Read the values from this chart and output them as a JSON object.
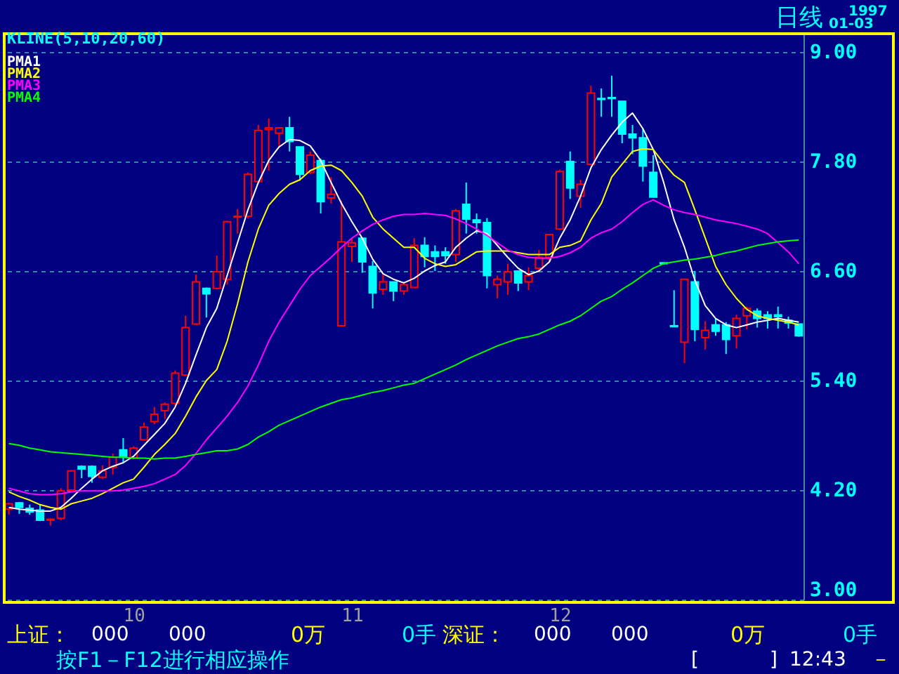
{
  "chart_data": {
    "type": "candlestick",
    "title": "日线",
    "subtitle": "KLINE(5,10,20,60)",
    "categories": [
      null,
      null,
      null,
      null,
      null,
      null,
      null,
      null,
      null,
      null,
      null,
      null,
      "10",
      null,
      null,
      null,
      null,
      null,
      null,
      null,
      null,
      null,
      null,
      null,
      null,
      null,
      null,
      null,
      null,
      null,
      null,
      null,
      null,
      "11",
      null,
      null,
      null,
      null,
      null,
      null,
      null,
      null,
      null,
      null,
      null,
      null,
      null,
      null,
      null,
      null,
      null,
      null,
      null,
      "12",
      null,
      null,
      null,
      null,
      null,
      null,
      null,
      null,
      null,
      null,
      null,
      null,
      null,
      null,
      null,
      null,
      null,
      null,
      null,
      null,
      null,
      null,
      null
    ],
    "ohlc": [
      [
        3.99,
        4.06,
        3.93,
        4.05
      ],
      [
        4.06,
        4.07,
        3.94,
        4.01
      ],
      [
        4.0,
        4.04,
        3.93,
        3.96
      ],
      [
        3.98,
        4.04,
        3.86,
        3.87
      ],
      [
        3.87,
        3.89,
        3.81,
        3.88
      ],
      [
        3.89,
        4.22,
        3.87,
        4.19
      ],
      [
        4.2,
        4.42,
        4.19,
        4.41
      ],
      [
        4.46,
        4.47,
        4.33,
        4.43
      ],
      [
        4.46,
        4.47,
        4.28,
        4.35
      ],
      [
        4.34,
        4.47,
        4.32,
        4.41
      ],
      [
        4.45,
        4.6,
        4.37,
        4.56
      ],
      [
        4.64,
        4.77,
        4.49,
        4.56
      ],
      [
        4.55,
        4.68,
        4.54,
        4.66
      ],
      [
        4.75,
        4.94,
        4.74,
        4.89
      ],
      [
        4.95,
        5.11,
        4.92,
        5.03
      ],
      [
        5.07,
        5.16,
        4.98,
        5.14
      ],
      [
        5.15,
        5.51,
        5.12,
        5.48
      ],
      [
        5.46,
        6.11,
        5.45,
        5.98
      ],
      [
        6.02,
        6.56,
        6.01,
        6.48
      ],
      [
        6.41,
        6.42,
        6.09,
        6.35
      ],
      [
        6.41,
        6.77,
        6.4,
        6.59
      ],
      [
        6.51,
        7.15,
        6.45,
        7.14
      ],
      [
        7.19,
        7.28,
        7.01,
        7.2
      ],
      [
        7.2,
        7.68,
        7.18,
        7.66
      ],
      [
        7.58,
        8.2,
        7.56,
        8.14
      ],
      [
        8.15,
        8.27,
        7.7,
        8.17
      ],
      [
        8.11,
        8.17,
        7.96,
        8.17
      ],
      [
        8.17,
        8.29,
        7.91,
        8.02
      ],
      [
        7.96,
        7.96,
        7.59,
        7.66
      ],
      [
        7.68,
        7.91,
        7.66,
        7.87
      ],
      [
        7.81,
        7.83,
        7.23,
        7.36
      ],
      [
        7.4,
        7.63,
        7.34,
        7.44
      ],
      [
        6.0,
        7.37,
        6.0,
        6.92
      ],
      [
        6.87,
        6.96,
        6.7,
        6.91
      ],
      [
        6.96,
        6.96,
        6.58,
        6.7
      ],
      [
        6.65,
        6.71,
        6.19,
        6.36
      ],
      [
        6.4,
        6.56,
        6.34,
        6.48
      ],
      [
        6.48,
        6.48,
        6.27,
        6.38
      ],
      [
        6.38,
        6.48,
        6.34,
        6.45
      ],
      [
        6.42,
        6.96,
        6.42,
        6.88
      ],
      [
        6.88,
        6.97,
        6.64,
        6.76
      ],
      [
        6.81,
        6.88,
        6.6,
        6.76
      ],
      [
        6.81,
        6.86,
        6.68,
        6.77
      ],
      [
        6.78,
        7.28,
        6.7,
        7.26
      ],
      [
        7.33,
        7.57,
        7.01,
        7.17
      ],
      [
        7.16,
        7.23,
        7.01,
        7.13
      ],
      [
        7.13,
        7.18,
        6.41,
        6.55
      ],
      [
        6.45,
        6.55,
        6.3,
        6.51
      ],
      [
        6.48,
        6.68,
        6.34,
        6.59
      ],
      [
        6.6,
        6.6,
        6.38,
        6.47
      ],
      [
        6.48,
        6.64,
        6.39,
        6.55
      ],
      [
        6.63,
        6.83,
        6.59,
        6.75
      ],
      [
        6.75,
        7.0,
        6.7,
        7.0
      ],
      [
        7.06,
        7.71,
        7.05,
        7.69
      ],
      [
        7.8,
        7.91,
        7.39,
        7.51
      ],
      [
        7.42,
        7.6,
        7.29,
        7.55
      ],
      [
        7.77,
        8.63,
        7.76,
        8.55
      ],
      [
        8.49,
        8.6,
        8.29,
        8.48
      ],
      [
        8.5,
        8.74,
        8.29,
        8.49
      ],
      [
        8.46,
        8.46,
        8.0,
        8.1
      ],
      [
        8.1,
        8.2,
        7.88,
        8.06
      ],
      [
        8.06,
        8.16,
        7.58,
        7.75
      ],
      [
        7.68,
        7.87,
        7.41,
        7.41
      ],
      [
        6.69,
        6.69,
        6.68,
        6.68
      ],
      [
        6.0,
        6.39,
        5.99,
        5.99
      ],
      [
        5.82,
        6.51,
        5.59,
        6.51
      ],
      [
        6.48,
        6.6,
        5.83,
        5.96
      ],
      [
        5.87,
        6.05,
        5.74,
        5.95
      ],
      [
        6.01,
        6.08,
        5.89,
        5.94
      ],
      [
        6.01,
        6.04,
        5.69,
        5.85
      ],
      [
        5.89,
        6.12,
        5.75,
        6.08
      ],
      [
        6.11,
        6.21,
        5.96,
        6.19
      ],
      [
        6.16,
        6.19,
        5.98,
        6.08
      ],
      [
        6.12,
        6.16,
        5.97,
        6.08
      ],
      [
        6.12,
        6.21,
        5.97,
        6.1
      ],
      [
        6.06,
        6.1,
        5.97,
        6.03
      ],
      [
        6.02,
        6.02,
        5.88,
        5.89
      ]
    ],
    "colors": [
      "#ff0000",
      "#00ffff",
      "#00ffff",
      "#00ffff",
      "#ff0000",
      "#ff0000",
      "#ff0000",
      "#00ffff",
      "#00ffff",
      "#ff0000",
      "#ff0000",
      "#00ffff",
      "#ff0000",
      "#ff0000",
      "#ff0000",
      "#ff0000",
      "#ff0000",
      "#ff0000",
      "#ff0000",
      "#00ffff",
      "#ff0000",
      "#ff0000",
      "#ff0000",
      "#ff0000",
      "#ff0000",
      "#ff0000",
      "#ff0000",
      "#00ffff",
      "#00ffff",
      "#ff0000",
      "#00ffff",
      "#ff0000",
      "#ff0000",
      "#ff0000",
      "#00ffff",
      "#00ffff",
      "#ff0000",
      "#00ffff",
      "#ff0000",
      "#ff0000",
      "#00ffff",
      "#00ffff",
      "#00ffff",
      "#ff0000",
      "#00ffff",
      "#00ffff",
      "#00ffff",
      "#ff0000",
      "#ff0000",
      "#00ffff",
      "#ff0000",
      "#ff0000",
      "#ff0000",
      "#ff0000",
      "#00ffff",
      "#ff0000",
      "#ff0000",
      "#00ffff",
      "#00ffff",
      "#00ffff",
      "#00ffff",
      "#00ffff",
      "#00ffff",
      "#00ffff",
      "#00ffff",
      "#ff0000",
      "#00ffff",
      "#ff0000",
      "#00ffff",
      "#00ffff",
      "#ff0000",
      "#ff0000",
      "#00ffff",
      "#00ffff",
      "#00ffff",
      "#00ffff",
      "#00ffff"
    ],
    "series": [
      {
        "type": "line",
        "name": "PMA1",
        "color": "#ffffff",
        "values": [
          4.01,
          3.99,
          3.98,
          3.97,
          3.97,
          4.01,
          4.11,
          4.22,
          4.32,
          4.41,
          4.46,
          4.5,
          4.57,
          4.69,
          4.81,
          4.93,
          5.11,
          5.37,
          5.68,
          5.98,
          6.19,
          6.55,
          6.91,
          7.27,
          7.57,
          7.81,
          7.96,
          8.04,
          8.03,
          7.97,
          7.81,
          7.57,
          7.34,
          7.14,
          6.96,
          6.73,
          6.57,
          6.51,
          6.47,
          6.52,
          6.6,
          6.66,
          6.7,
          6.86,
          6.96,
          7.04,
          7.01,
          6.88,
          6.75,
          6.63,
          6.56,
          6.6,
          6.7,
          6.96,
          7.16,
          7.42,
          7.73,
          7.93,
          8.09,
          8.23,
          8.33,
          8.16,
          7.93,
          7.57,
          7.16,
          6.86,
          6.5,
          6.22,
          6.08,
          6.01,
          5.98,
          6.01,
          6.04,
          6.06,
          6.08,
          6.06,
          6.04
        ]
      },
      {
        "type": "line",
        "name": "PMA2",
        "color": "#ffff00",
        "values": [
          4.18,
          4.13,
          4.09,
          4.04,
          4.01,
          3.99,
          4.05,
          4.08,
          4.11,
          4.16,
          4.22,
          4.28,
          4.32,
          4.45,
          4.59,
          4.7,
          4.82,
          5.01,
          5.22,
          5.4,
          5.52,
          5.83,
          6.24,
          6.7,
          7.06,
          7.32,
          7.45,
          7.55,
          7.6,
          7.7,
          7.75,
          7.76,
          7.7,
          7.57,
          7.42,
          7.19,
          7.06,
          6.96,
          6.86,
          6.86,
          6.74,
          6.68,
          6.65,
          6.67,
          6.74,
          6.81,
          6.82,
          6.82,
          6.82,
          6.8,
          6.78,
          6.78,
          6.78,
          6.86,
          6.88,
          6.93,
          7.16,
          7.34,
          7.63,
          7.77,
          7.91,
          7.94,
          7.93,
          7.78,
          7.65,
          7.57,
          7.27,
          6.96,
          6.65,
          6.45,
          6.3,
          6.18,
          6.11,
          6.08,
          6.06,
          6.04,
          6.01
        ]
      },
      {
        "type": "line",
        "name": "PMA3",
        "color": "#ff00ff",
        "values": [
          4.22,
          4.19,
          4.16,
          4.15,
          4.15,
          4.16,
          4.18,
          4.19,
          4.19,
          4.19,
          4.19,
          4.2,
          4.22,
          4.24,
          4.27,
          4.32,
          4.37,
          4.47,
          4.6,
          4.75,
          4.88,
          5.01,
          5.16,
          5.34,
          5.57,
          5.83,
          6.04,
          6.22,
          6.4,
          6.55,
          6.65,
          6.75,
          6.86,
          6.96,
          7.04,
          7.11,
          7.16,
          7.2,
          7.22,
          7.22,
          7.23,
          7.22,
          7.21,
          7.17,
          7.12,
          7.06,
          6.99,
          6.91,
          6.83,
          6.78,
          6.75,
          6.74,
          6.74,
          6.76,
          6.8,
          6.86,
          6.96,
          7.02,
          7.06,
          7.14,
          7.24,
          7.33,
          7.38,
          7.32,
          7.27,
          7.24,
          7.22,
          7.19,
          7.16,
          7.14,
          7.12,
          7.09,
          7.06,
          7.01,
          6.91,
          6.81,
          6.68
        ]
      },
      {
        "type": "line",
        "name": "PMA4",
        "color": "#00ff00",
        "values": [
          4.71,
          4.69,
          4.66,
          4.64,
          4.62,
          4.61,
          4.6,
          4.59,
          4.58,
          4.57,
          4.56,
          4.56,
          4.55,
          4.55,
          4.54,
          4.55,
          4.55,
          4.57,
          4.59,
          4.61,
          4.63,
          4.63,
          4.65,
          4.7,
          4.78,
          4.84,
          4.91,
          4.96,
          5.01,
          5.06,
          5.11,
          5.15,
          5.19,
          5.21,
          5.24,
          5.27,
          5.29,
          5.32,
          5.35,
          5.37,
          5.42,
          5.47,
          5.52,
          5.57,
          5.63,
          5.68,
          5.73,
          5.78,
          5.82,
          5.86,
          5.88,
          5.91,
          5.96,
          6.01,
          6.05,
          6.11,
          6.19,
          6.27,
          6.32,
          6.4,
          6.47,
          6.55,
          6.63,
          6.68,
          6.7,
          6.72,
          6.73,
          6.75,
          6.77,
          6.8,
          6.82,
          6.85,
          6.88,
          6.9,
          6.92,
          6.93,
          6.94
        ]
      }
    ],
    "ylim": [
      3,
      9.2
    ],
    "yticks": [
      {
        "value": 3,
        "label": "3.00"
      },
      {
        "value": 4.2,
        "label": "4.20"
      },
      {
        "value": 5.4,
        "label": "5.40"
      },
      {
        "value": 6.6,
        "label": "6.60"
      },
      {
        "value": 7.8,
        "label": "7.80"
      },
      {
        "value": 9,
        "label": "9.00"
      }
    ],
    "grid": "y",
    "legend": "top left",
    "annotations": [
      "1997",
      "01-03",
      "上证：",
      "000",
      "000",
      "0万",
      "0手",
      "深证：",
      "000",
      "000",
      "0万",
      "0手",
      "按F1－F12进行相应操作",
      "[",
      "]",
      "12:43",
      "－"
    ]
  }
}
